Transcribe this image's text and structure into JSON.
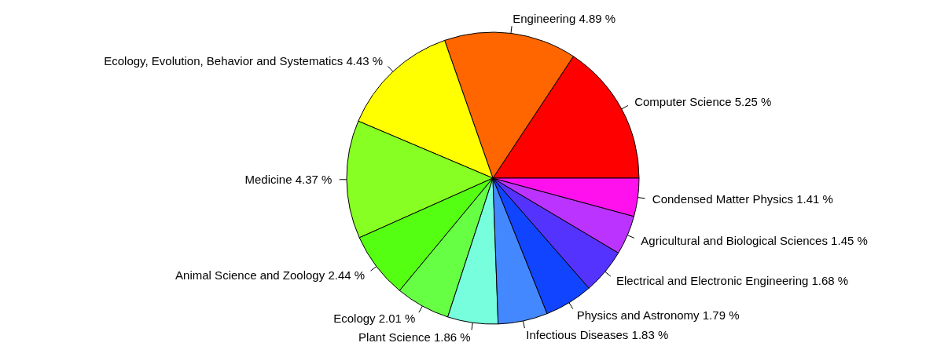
{
  "chart_data": {
    "type": "pie",
    "categories": [
      "Computer Science",
      "Engineering",
      "Ecology, Evolution, Behavior and Systematics",
      "Medicine",
      "Animal Science and Zoology",
      "Ecology",
      "Plant Science",
      "Infectious Diseases",
      "Physics and Astronomy",
      "Electrical and Electronic Engineering",
      "Agricultural and Biological Sciences",
      "Condensed Matter Physics"
    ],
    "values": [
      5.25,
      4.89,
      4.43,
      4.37,
      2.44,
      2.01,
      1.86,
      1.83,
      1.79,
      1.68,
      1.45,
      1.41
    ],
    "value_labels": [
      "5.25 %",
      "4.89 %",
      "4.43 %",
      "4.37 %",
      "2.44 %",
      "2.01 %",
      "1.86 %",
      "1.83 %",
      "1.79 %",
      "1.68 %",
      "1.45 %",
      "1.41 %"
    ],
    "colors": [
      "#ff0000",
      "#ff6600",
      "#ffff00",
      "#88ff22",
      "#55ff11",
      "#66ff44",
      "#77ffdd",
      "#4488ff",
      "#1144ff",
      "#5533ff",
      "#bb33ff",
      "#ff11ee"
    ]
  }
}
